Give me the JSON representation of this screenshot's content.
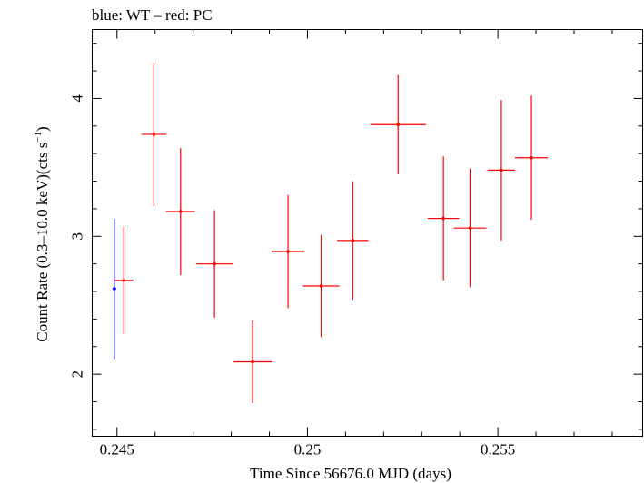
{
  "chart_data": {
    "type": "scatter",
    "title": "blue: WT – red: PC",
    "xlabel": "Time Since 56676.0 MJD (days)",
    "ylabel_main": "Count Rate (0.3–10.0 keV)(cts s",
    "ylabel_sup": "−1",
    "ylabel_close": ")",
    "xlim": [
      0.24435,
      0.2588
    ],
    "ylim": [
      1.55,
      4.5
    ],
    "x_ticks": [
      {
        "value": 0.245,
        "label": "0.245"
      },
      {
        "value": 0.25,
        "label": "0.25"
      },
      {
        "value": 0.255,
        "label": "0.255"
      }
    ],
    "x_minor_step": 0.001,
    "y_ticks": [
      {
        "value": 2,
        "label": "2"
      },
      {
        "value": 3,
        "label": "3"
      },
      {
        "value": 4,
        "label": "4"
      }
    ],
    "y_minor_step": 0.2,
    "grid": false,
    "series": [
      {
        "name": "WT",
        "color": "#0000ff",
        "points": [
          {
            "x": 0.24493,
            "xerr": 5e-05,
            "y": 2.62,
            "yerr_lo": 0.51,
            "yerr_hi": 0.51
          }
        ]
      },
      {
        "name": "PC",
        "color": "#ff0000",
        "points": [
          {
            "x": 0.24518,
            "xerr": 0.00025,
            "y": 2.68,
            "yerr_lo": 0.39,
            "yerr_hi": 0.39
          },
          {
            "x": 0.24597,
            "xerr": 0.00033,
            "y": 3.74,
            "yerr_lo": 0.52,
            "yerr_hi": 0.52
          },
          {
            "x": 0.24667,
            "xerr": 0.00038,
            "y": 3.18,
            "yerr_lo": 0.46,
            "yerr_hi": 0.46
          },
          {
            "x": 0.24756,
            "xerr": 0.00048,
            "y": 2.8,
            "yerr_lo": 0.39,
            "yerr_hi": 0.39
          },
          {
            "x": 0.24856,
            "xerr": 0.00051,
            "y": 2.09,
            "yerr_lo": 0.3,
            "yerr_hi": 0.3
          },
          {
            "x": 0.24949,
            "xerr": 0.00043,
            "y": 2.89,
            "yerr_lo": 0.41,
            "yerr_hi": 0.41
          },
          {
            "x": 0.25036,
            "xerr": 0.00048,
            "y": 2.64,
            "yerr_lo": 0.37,
            "yerr_hi": 0.37
          },
          {
            "x": 0.25119,
            "xerr": 0.00041,
            "y": 2.97,
            "yerr_lo": 0.43,
            "yerr_hi": 0.43
          },
          {
            "x": 0.25238,
            "xerr": 0.00073,
            "y": 3.81,
            "yerr_lo": 0.36,
            "yerr_hi": 0.36
          },
          {
            "x": 0.25357,
            "xerr": 0.00041,
            "y": 3.13,
            "yerr_lo": 0.45,
            "yerr_hi": 0.45
          },
          {
            "x": 0.25427,
            "xerr": 0.00043,
            "y": 3.06,
            "yerr_lo": 0.43,
            "yerr_hi": 0.43
          },
          {
            "x": 0.25509,
            "xerr": 0.00036,
            "y": 3.48,
            "yerr_lo": 0.51,
            "yerr_hi": 0.51
          },
          {
            "x": 0.25588,
            "xerr": 0.00043,
            "y": 3.57,
            "yerr_lo": 0.45,
            "yerr_hi": 0.45
          }
        ]
      }
    ]
  }
}
